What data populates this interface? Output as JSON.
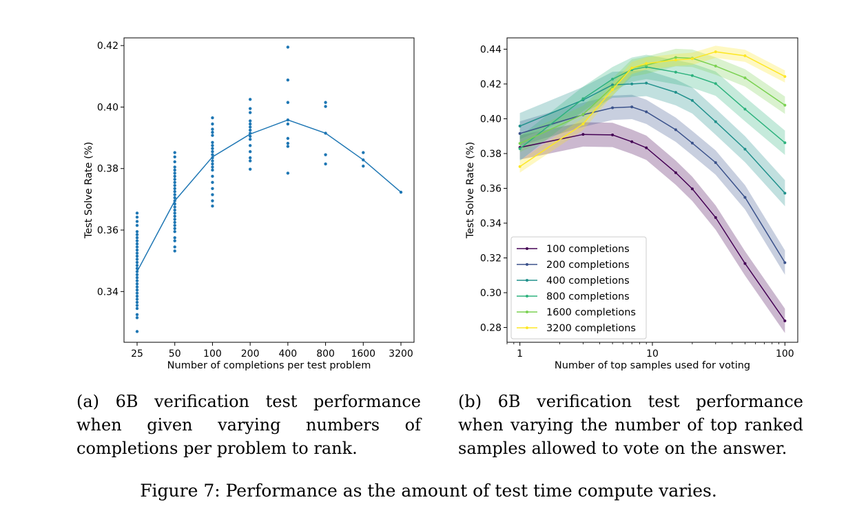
{
  "figure_caption": "Figure 7: Performance as the amount of test time compute varies.",
  "captions": {
    "a": "(a) 6B verification test performance when given varying numbers of completions per problem to rank.",
    "b": "(b) 6B verification test performance when varying the number of top ranked samples allowed to vote on the answer."
  },
  "chart_data": [
    {
      "type": "scatter",
      "title": "",
      "xlabel": "Number of completions per test problem",
      "ylabel": "Test Solve Rate (%)",
      "x_scale": "log2",
      "categories": [
        "25",
        "50",
        "100",
        "200",
        "400",
        "800",
        "1600",
        "3200"
      ],
      "x": [
        25,
        50,
        100,
        200,
        400,
        800,
        1600,
        3200
      ],
      "ylim": [
        0.3235,
        0.4225
      ],
      "yticks": [
        0.34,
        0.36,
        0.38,
        0.4,
        0.42
      ],
      "ytick_labels": [
        "0.34",
        "0.36",
        "0.38",
        "0.40",
        "0.42"
      ],
      "color": "#1f77b4",
      "mean_line": [
        0.3465,
        0.3695,
        0.3838,
        0.3912,
        0.3958,
        0.3915,
        0.3828,
        0.3723
      ],
      "points": {
        "25": [
          0.3655,
          0.3642,
          0.3628,
          0.3615,
          0.3595,
          0.3585,
          0.3575,
          0.3565,
          0.3555,
          0.3545,
          0.3535,
          0.3525,
          0.3515,
          0.3505,
          0.3495,
          0.3485,
          0.3475,
          0.3465,
          0.3455,
          0.3445,
          0.3435,
          0.3425,
          0.3415,
          0.3405,
          0.3395,
          0.3385,
          0.3375,
          0.3365,
          0.3355,
          0.3345,
          0.3325,
          0.3315,
          0.327
        ],
        "50": [
          0.3852,
          0.3838,
          0.3822,
          0.3805,
          0.3795,
          0.3785,
          0.3775,
          0.3765,
          0.3755,
          0.3745,
          0.3735,
          0.3725,
          0.3715,
          0.3705,
          0.3695,
          0.3685,
          0.3675,
          0.3665,
          0.3655,
          0.3645,
          0.3635,
          0.3625,
          0.3615,
          0.3605,
          0.3595,
          0.3575,
          0.3565,
          0.3545,
          0.3532
        ],
        "100": [
          0.3965,
          0.3945,
          0.3928,
          0.3918,
          0.3908,
          0.3885,
          0.3875,
          0.3865,
          0.3855,
          0.3845,
          0.3835,
          0.3825,
          0.3815,
          0.3805,
          0.3795,
          0.3775,
          0.3755,
          0.3735,
          0.3715,
          0.3695,
          0.3678
        ],
        "200": [
          0.4025,
          0.3995,
          0.3982,
          0.3955,
          0.3945,
          0.3935,
          0.3925,
          0.3915,
          0.3905,
          0.3895,
          0.3875,
          0.3855,
          0.3835,
          0.3825,
          0.3798
        ],
        "400": [
          0.4195,
          0.4088,
          0.4015,
          0.3958,
          0.3945,
          0.3898,
          0.3882,
          0.3872,
          0.3785
        ],
        "800": [
          0.4015,
          0.4002,
          0.3915,
          0.3845,
          0.3815
        ],
        "1600": [
          0.3852,
          0.3828,
          0.3808
        ],
        "3200": [
          0.3723
        ]
      }
    },
    {
      "type": "line",
      "title": "",
      "xlabel": "Number of top samples used for voting",
      "ylabel": "Test Solve Rate (%)",
      "x_scale": "log10",
      "xlim": [
        0.8,
        125
      ],
      "xticks": [
        1,
        10,
        100
      ],
      "xtick_labels": [
        "1",
        "10",
        "100"
      ],
      "ylim": [
        0.2715,
        0.4465
      ],
      "yticks": [
        0.28,
        0.3,
        0.32,
        0.34,
        0.36,
        0.38,
        0.4,
        0.42,
        0.44
      ],
      "ytick_labels": [
        "0.28",
        "0.30",
        "0.32",
        "0.34",
        "0.36",
        "0.38",
        "0.40",
        "0.42",
        "0.44"
      ],
      "legend_position": "lower-left",
      "x": [
        1,
        3,
        5,
        7,
        9,
        15,
        20,
        30,
        50,
        100
      ],
      "series": [
        {
          "name": "100 completions",
          "color": "#440154",
          "band": 0.007,
          "values": [
            0.3835,
            0.391,
            0.3907,
            0.3868,
            0.3833,
            0.369,
            0.3597,
            0.3432,
            0.3168,
            0.2838
          ]
        },
        {
          "name": "200 completions",
          "color": "#3b528b",
          "band": 0.007,
          "values": [
            0.3915,
            0.4023,
            0.4063,
            0.4068,
            0.404,
            0.3937,
            0.386,
            0.3748,
            0.3548,
            0.3173
          ]
        },
        {
          "name": "400 completions",
          "color": "#21918c",
          "band": 0.0075,
          "values": [
            0.3958,
            0.4108,
            0.4195,
            0.42,
            0.4205,
            0.4152,
            0.4105,
            0.3983,
            0.3825,
            0.3572
          ]
        },
        {
          "name": "800 completions",
          "color": "#2db27d",
          "band": 0.007,
          "values": [
            0.3828,
            0.4115,
            0.4228,
            0.4282,
            0.4298,
            0.4268,
            0.4248,
            0.4202,
            0.4055,
            0.3862
          ]
        },
        {
          "name": "1600 completions",
          "color": "#7ad151",
          "band": 0.005,
          "values": [
            0.3858,
            0.4025,
            0.4182,
            0.4292,
            0.4308,
            0.4352,
            0.4348,
            0.4303,
            0.4235,
            0.4078
          ]
        },
        {
          "name": "3200 completions",
          "color": "#fde725",
          "band": 0.0035,
          "values": [
            0.3725,
            0.397,
            0.4168,
            0.4292,
            0.4318,
            0.4338,
            0.4345,
            0.4385,
            0.4362,
            0.4243
          ]
        }
      ]
    }
  ]
}
